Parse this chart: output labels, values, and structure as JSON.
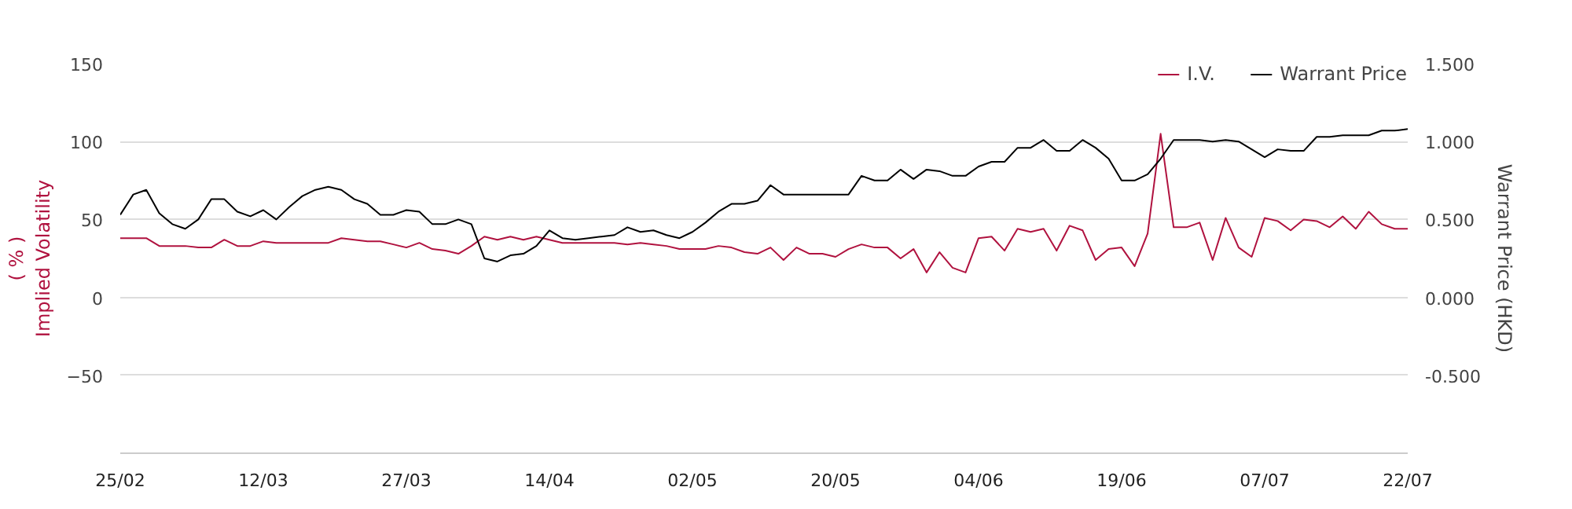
{
  "chart_data": {
    "type": "line",
    "categories": [
      "25/02",
      null,
      null,
      null,
      null,
      null,
      null,
      null,
      null,
      null,
      null,
      "12/03",
      null,
      null,
      null,
      null,
      null,
      null,
      null,
      null,
      null,
      null,
      "27/03",
      null,
      null,
      null,
      null,
      null,
      null,
      null,
      null,
      null,
      null,
      "14/04",
      null,
      null,
      null,
      null,
      null,
      null,
      null,
      null,
      null,
      null,
      "02/05",
      null,
      null,
      null,
      null,
      null,
      null,
      null,
      null,
      null,
      null,
      "20/05",
      null,
      null,
      null,
      null,
      null,
      null,
      null,
      null,
      null,
      null,
      "04/06",
      null,
      null,
      null,
      null,
      null,
      null,
      null,
      null,
      null,
      null,
      "19/06",
      null,
      null,
      null,
      null,
      null,
      null,
      null,
      null,
      null,
      null,
      "07/07",
      null,
      null,
      null,
      null,
      null,
      null,
      null,
      null,
      null,
      null,
      "22/07"
    ],
    "series": [
      {
        "name": "I.V.",
        "color": "#b0123f",
        "values": [
          38,
          38,
          38,
          33,
          33,
          33,
          32,
          32,
          37,
          33,
          33,
          36,
          35,
          35,
          35,
          35,
          35,
          38,
          37,
          36,
          36,
          34,
          32,
          35,
          31,
          30,
          28,
          33,
          39,
          37,
          39,
          37,
          39,
          37,
          35,
          35,
          35,
          35,
          35,
          34,
          35,
          34,
          33,
          31,
          31,
          31,
          33,
          32,
          29,
          28,
          32,
          24,
          32,
          28,
          28,
          26,
          31,
          34,
          32,
          32,
          25,
          31,
          16,
          29,
          19,
          16,
          38,
          39,
          30,
          44,
          42,
          44,
          30,
          46,
          43,
          24,
          31,
          32,
          20,
          41,
          105,
          45,
          45,
          48,
          24,
          51,
          32,
          26,
          51,
          49,
          43,
          50,
          49,
          45,
          52,
          44,
          55,
          47,
          44,
          44
        ]
      },
      {
        "name": "Warrant Price",
        "color": "#000000",
        "axis": "y2",
        "values": [
          0.53,
          0.66,
          0.69,
          0.54,
          0.47,
          0.44,
          0.5,
          0.63,
          0.63,
          0.55,
          0.52,
          0.56,
          0.5,
          0.58,
          0.65,
          0.69,
          0.71,
          0.69,
          0.63,
          0.6,
          0.53,
          0.53,
          0.56,
          0.55,
          0.47,
          0.47,
          0.5,
          0.47,
          0.25,
          0.23,
          0.27,
          0.28,
          0.33,
          0.43,
          0.38,
          0.37,
          0.38,
          0.39,
          0.4,
          0.45,
          0.42,
          0.43,
          0.4,
          0.38,
          0.42,
          0.48,
          0.55,
          0.6,
          0.6,
          0.62,
          0.72,
          0.66,
          0.66,
          0.66,
          0.66,
          0.66,
          0.66,
          0.78,
          0.75,
          0.75,
          0.82,
          0.76,
          0.82,
          0.81,
          0.78,
          0.78,
          0.84,
          0.87,
          0.87,
          0.96,
          0.96,
          1.01,
          0.94,
          0.94,
          1.01,
          0.96,
          0.89,
          0.75,
          0.75,
          0.79,
          0.89,
          1.01,
          1.01,
          1.01,
          1.0,
          1.01,
          1.0,
          0.95,
          0.9,
          0.95,
          0.94,
          0.94,
          1.03,
          1.03,
          1.04,
          1.04,
          1.04,
          1.07,
          1.07,
          1.08
        ]
      }
    ],
    "ylabel": "Implied Volatility\n( % )",
    "y2label": "Warrant Price (HKD)",
    "ylim": [
      -100,
      150
    ],
    "yticks": [
      -50,
      0,
      50,
      100,
      150
    ],
    "y2lim": [
      -1.0,
      1.5
    ],
    "y2ticks": [
      {
        "value": -0.5,
        "label": "-0.500"
      },
      {
        "value": 0,
        "label": "0.000"
      },
      {
        "value": 0.5,
        "label": "0.500"
      },
      {
        "value": 1.0,
        "label": "1.000"
      },
      {
        "value": 1.5,
        "label": "1.500"
      }
    ],
    "grid": "y",
    "legend": "top right"
  }
}
